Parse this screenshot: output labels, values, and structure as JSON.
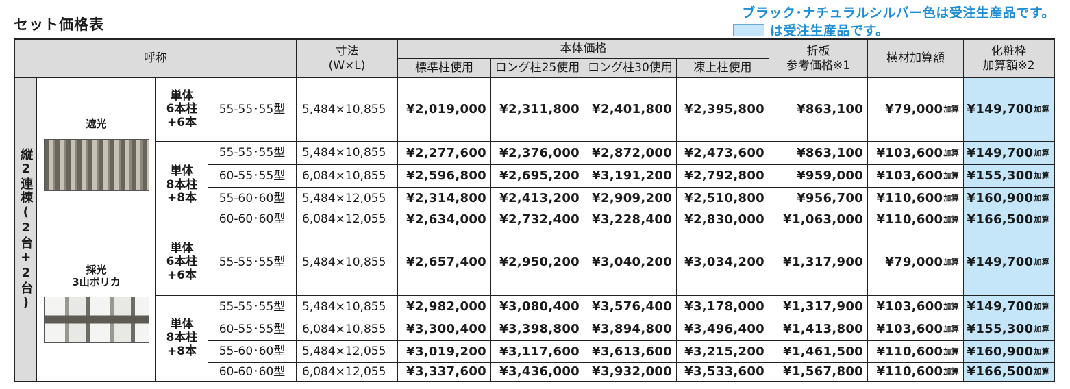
{
  "title": "セット価格表",
  "notes": {
    "line1": "ブラック･ナチュラルシルバー色は受注生産品です。",
    "line2": "は受注生産品です。",
    "swatch_color": "#c4e6f8"
  },
  "headers": {
    "yobi": "呼称",
    "sunpo": "寸法",
    "sunpo_sub": "(W×L)",
    "hontai": "本体価格",
    "std": "標準柱使用",
    "long25": "ロング柱25使用",
    "long30": "ロング柱30使用",
    "toujo": "凍上柱使用",
    "oriita1": "折板",
    "oriita2": "参考価格※1",
    "yokozai": "横材加算額",
    "kesho1": "化粧枠",
    "kesho2": "加算額※2"
  },
  "group_label": "縦2連棟(2台+2台)",
  "kasan_suffix": "加算",
  "sections": [
    {
      "name": "遮光",
      "units": [
        {
          "l1": "単体",
          "l2": "6本柱",
          "l3": "+6本"
        },
        {
          "l1": "単体",
          "l2": "8本柱",
          "l3": "+8本"
        }
      ]
    },
    {
      "name1": "採光",
      "name2": "3山ポリカ",
      "units": [
        {
          "l1": "単体",
          "l2": "6本柱",
          "l3": "+6本"
        },
        {
          "l1": "単体",
          "l2": "8本柱",
          "l3": "+8本"
        }
      ]
    }
  ],
  "rows": [
    {
      "type": "55-55･55型",
      "dim": "5,484×10,855",
      "std": "¥2,019,000",
      "l25": "¥2,311,800",
      "l30": "¥2,401,800",
      "toujo": "¥2,395,800",
      "oriita": "¥863,100",
      "yoko": "¥79,000",
      "kesho": "¥149,700"
    },
    {
      "type": "55-55･55型",
      "dim": "5,484×10,855",
      "std": "¥2,277,600",
      "l25": "¥2,376,000",
      "l30": "¥2,872,000",
      "toujo": "¥2,473,600",
      "oriita": "¥863,100",
      "yoko": "¥103,600",
      "kesho": "¥149,700"
    },
    {
      "type": "60-55･55型",
      "dim": "6,084×10,855",
      "std": "¥2,596,800",
      "l25": "¥2,695,200",
      "l30": "¥3,191,200",
      "toujo": "¥2,792,800",
      "oriita": "¥959,000",
      "yoko": "¥103,600",
      "kesho": "¥155,300"
    },
    {
      "type": "55-60･60型",
      "dim": "5,484×12,055",
      "std": "¥2,314,800",
      "l25": "¥2,413,200",
      "l30": "¥2,909,200",
      "toujo": "¥2,510,800",
      "oriita": "¥956,700",
      "yoko": "¥110,600",
      "kesho": "¥160,900"
    },
    {
      "type": "60-60･60型",
      "dim": "6,084×12,055",
      "std": "¥2,634,000",
      "l25": "¥2,732,400",
      "l30": "¥3,228,400",
      "toujo": "¥2,830,000",
      "oriita": "¥1,063,000",
      "yoko": "¥110,600",
      "kesho": "¥166,500"
    },
    {
      "type": "55-55･55型",
      "dim": "5,484×10,855",
      "std": "¥2,657,400",
      "l25": "¥2,950,200",
      "l30": "¥3,040,200",
      "toujo": "¥3,034,200",
      "oriita": "¥1,317,900",
      "yoko": "¥79,000",
      "kesho": "¥149,700"
    },
    {
      "type": "55-55･55型",
      "dim": "5,484×10,855",
      "std": "¥2,982,000",
      "l25": "¥3,080,400",
      "l30": "¥3,576,400",
      "toujo": "¥3,178,000",
      "oriita": "¥1,317,900",
      "yoko": "¥103,600",
      "kesho": "¥149,700"
    },
    {
      "type": "60-55･55型",
      "dim": "6,084×10,855",
      "std": "¥3,300,400",
      "l25": "¥3,398,800",
      "l30": "¥3,894,800",
      "toujo": "¥3,496,400",
      "oriita": "¥1,413,800",
      "yoko": "¥103,600",
      "kesho": "¥155,300"
    },
    {
      "type": "55-60･60型",
      "dim": "5,484×12,055",
      "std": "¥3,019,200",
      "l25": "¥3,117,600",
      "l30": "¥3,613,600",
      "toujo": "¥3,215,200",
      "oriita": "¥1,461,500",
      "yoko": "¥110,600",
      "kesho": "¥160,900"
    },
    {
      "type": "60-60･60型",
      "dim": "6,084×12,055",
      "std": "¥3,337,600",
      "l25": "¥3,436,000",
      "l30": "¥3,932,000",
      "toujo": "¥3,533,600",
      "oriita": "¥1,567,800",
      "yoko": "¥110,600",
      "kesho": "¥166,500"
    }
  ]
}
